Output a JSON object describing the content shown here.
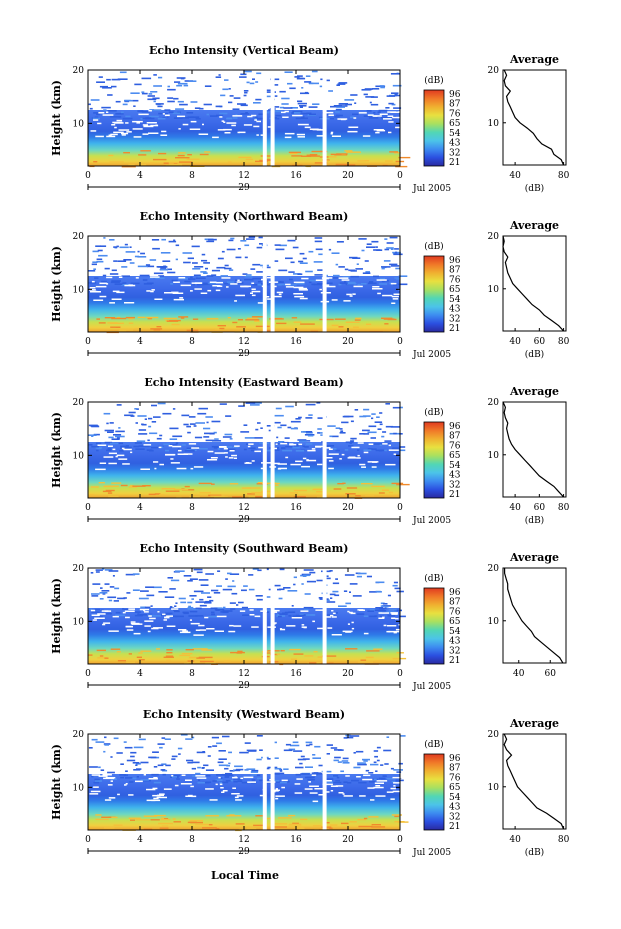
{
  "figure": {
    "xlabel": "Local Time",
    "colorbar_unit": "(dB)",
    "colorbar_ticks": [
      "96",
      "87",
      "76",
      "65",
      "54",
      "43",
      "32",
      "21"
    ],
    "colorbar_colors": [
      "#2a2aa0",
      "#2b4fe0",
      "#3d8cf0",
      "#4cc4e8",
      "#52d6b4",
      "#a8e060",
      "#e8e040",
      "#f0b030",
      "#f07828",
      "#e03a20"
    ],
    "day_label": "29",
    "month_label": "Jul 2005",
    "average_title": "Average"
  },
  "chart_data": [
    {
      "type": "heatmap",
      "title": "Echo Intensity (Vertical Beam)",
      "ylabel": "Height (km)",
      "xlim": [
        0,
        24
      ],
      "ylim": [
        2,
        20
      ],
      "xticks": [
        "0",
        "4",
        "8",
        "12",
        "16",
        "20",
        "0"
      ],
      "yticks": [
        "10",
        "20"
      ],
      "gaps_hours": [
        13.6,
        14.2,
        18.2
      ],
      "profile": {
        "title": "Average",
        "xlabel": "(dB)",
        "xticks": [
          "40",
          "80"
        ],
        "xlim": [
          30,
          82
        ],
        "heights": [
          2,
          3,
          4,
          5,
          6,
          7,
          8,
          9,
          10,
          11,
          12,
          13,
          14,
          15,
          16,
          17,
          18,
          19,
          20
        ],
        "values": [
          80,
          78,
          72,
          70,
          62,
          58,
          55,
          50,
          44,
          40,
          38,
          36,
          34,
          33,
          36,
          32,
          31,
          33,
          31
        ]
      }
    },
    {
      "type": "heatmap",
      "title": "Echo Intensity (Northward Beam)",
      "ylabel": "Height (km)",
      "xlim": [
        0,
        24
      ],
      "ylim": [
        2,
        20
      ],
      "xticks": [
        "0",
        "4",
        "8",
        "12",
        "16",
        "20",
        "0"
      ],
      "yticks": [
        "10",
        "20"
      ],
      "gaps_hours": [
        13.6,
        14.2,
        18.2
      ],
      "profile": {
        "title": "Average",
        "xlabel": "(dB)",
        "xticks": [
          "40",
          "60",
          "80"
        ],
        "xlim": [
          30,
          82
        ],
        "heights": [
          2,
          3,
          4,
          5,
          6,
          7,
          8,
          9,
          10,
          11,
          12,
          13,
          14,
          15,
          16,
          17,
          18,
          19,
          20
        ],
        "values": [
          80,
          76,
          70,
          64,
          60,
          54,
          50,
          46,
          42,
          38,
          36,
          34,
          33,
          32,
          34,
          31,
          30,
          31,
          30
        ]
      }
    },
    {
      "type": "heatmap",
      "title": "Echo Intensity (Eastward Beam)",
      "ylabel": "Height (km)",
      "xlim": [
        0,
        24
      ],
      "ylim": [
        2,
        20
      ],
      "xticks": [
        "0",
        "4",
        "8",
        "12",
        "16",
        "20",
        "0"
      ],
      "yticks": [
        "10",
        "20"
      ],
      "gaps_hours": [
        13.6,
        14.2,
        18.2
      ],
      "profile": {
        "title": "Average",
        "xlabel": "(dB)",
        "xticks": [
          "40",
          "60",
          "80"
        ],
        "xlim": [
          30,
          82
        ],
        "heights": [
          2,
          3,
          4,
          5,
          6,
          7,
          8,
          9,
          10,
          11,
          12,
          13,
          14,
          15,
          16,
          17,
          18,
          19,
          20
        ],
        "values": [
          80,
          76,
          72,
          66,
          60,
          56,
          52,
          48,
          44,
          40,
          37,
          35,
          34,
          33,
          34,
          32,
          31,
          32,
          30
        ]
      }
    },
    {
      "type": "heatmap",
      "title": "Echo Intensity (Southward Beam)",
      "ylabel": "Height (km)",
      "xlim": [
        0,
        24
      ],
      "ylim": [
        2,
        20
      ],
      "xticks": [
        "0",
        "4",
        "8",
        "12",
        "16",
        "20",
        "0"
      ],
      "yticks": [
        "10",
        "20"
      ],
      "gaps_hours": [
        13.6,
        14.2,
        18.2
      ],
      "profile": {
        "title": "Average",
        "xlabel": "",
        "xticks": [
          "40",
          "60"
        ],
        "xlim": [
          30,
          70
        ],
        "heights": [
          2,
          3,
          4,
          5,
          6,
          7,
          8,
          9,
          10,
          11,
          12,
          13,
          14,
          15,
          16,
          17,
          18,
          19,
          20
        ],
        "values": [
          68,
          66,
          62,
          58,
          54,
          50,
          48,
          45,
          42,
          40,
          38,
          36,
          35,
          34,
          33,
          33,
          32,
          31,
          31
        ]
      }
    },
    {
      "type": "heatmap",
      "title": "Echo Intensity (Westward Beam)",
      "ylabel": "Height (km)",
      "xlim": [
        0,
        24
      ],
      "ylim": [
        2,
        20
      ],
      "xticks": [
        "0",
        "4",
        "8",
        "12",
        "16",
        "20",
        "0"
      ],
      "yticks": [
        "10",
        "20"
      ],
      "gaps_hours": [
        13.6,
        14.2,
        18.2
      ],
      "profile": {
        "title": "Average",
        "xlabel": "(dB)",
        "xticks": [
          "40",
          "80"
        ],
        "xlim": [
          30,
          82
        ],
        "heights": [
          2,
          3,
          4,
          5,
          6,
          7,
          8,
          9,
          10,
          11,
          12,
          13,
          14,
          15,
          16,
          17,
          18,
          19,
          20
        ],
        "values": [
          80,
          78,
          72,
          66,
          58,
          54,
          50,
          46,
          42,
          40,
          38,
          36,
          34,
          33,
          37,
          33,
          31,
          33,
          31
        ]
      }
    }
  ]
}
